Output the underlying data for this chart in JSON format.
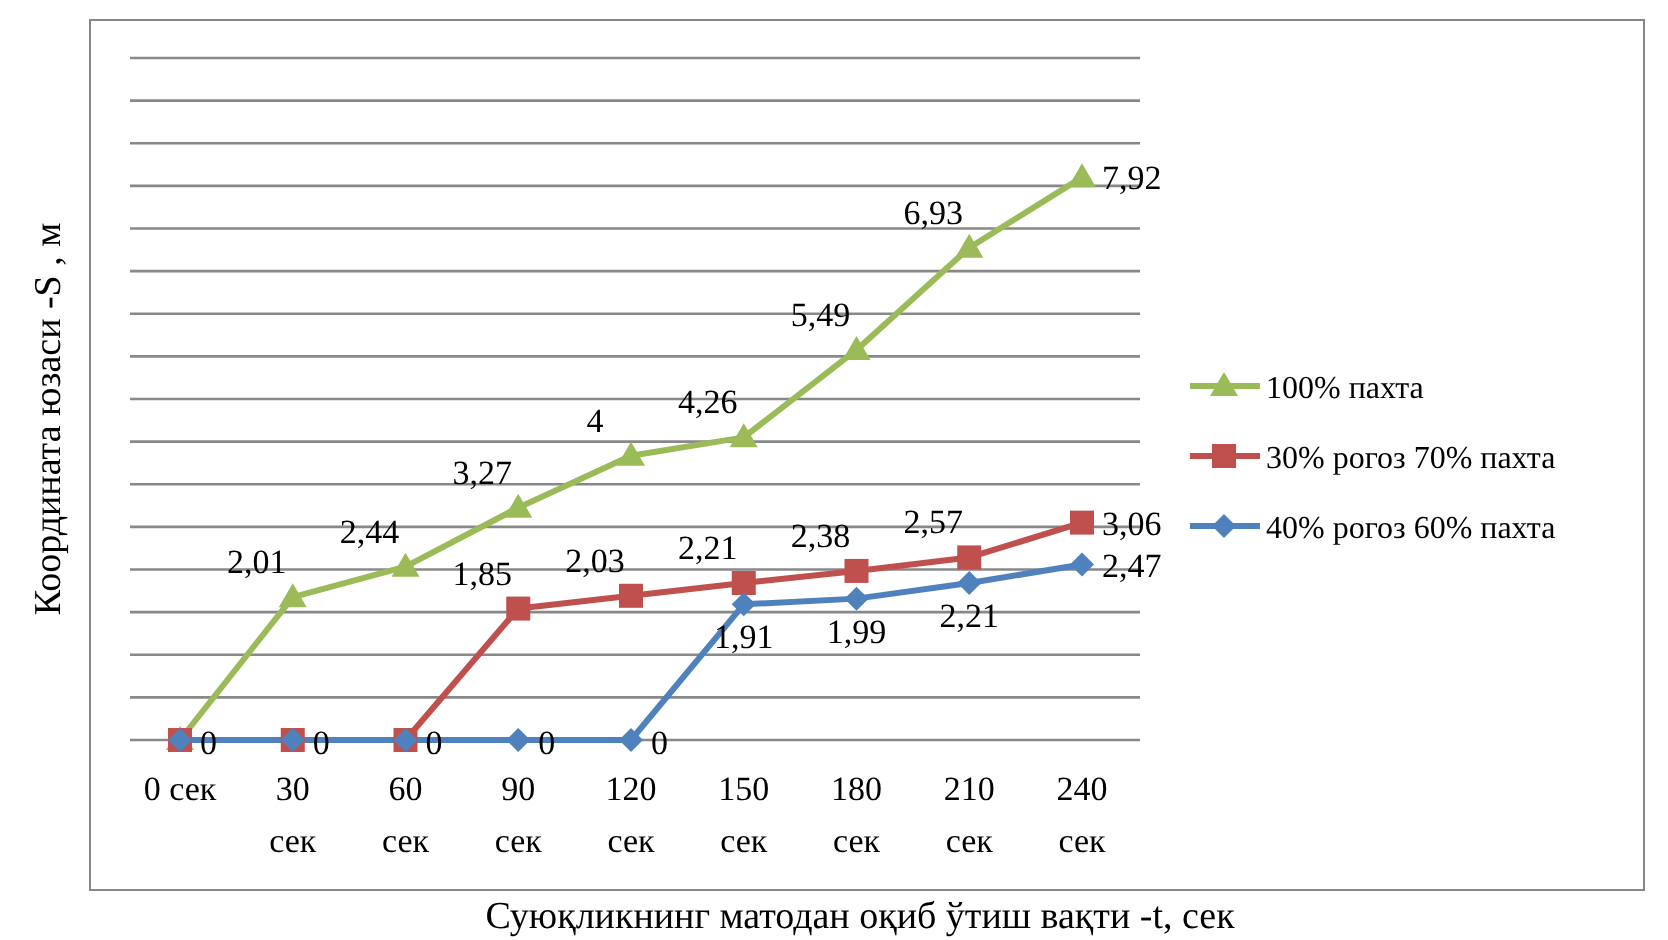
{
  "chart_data": {
    "type": "line",
    "xlabel": "Суюқликнинг матодан оқиб ўтиш вақти -t, сек",
    "ylabel": "Координата юзаси -S , м",
    "categories": [
      "0 сек",
      "30 сек",
      "60 сек",
      "90 сек",
      "120 сек",
      "150 сек",
      "180 сек",
      "210 сек",
      "240 сек"
    ],
    "series": [
      {
        "name": "100% пахта",
        "color": "#9bbb59",
        "marker": "triangle",
        "values": [
          0,
          2.01,
          2.44,
          3.27,
          4,
          4.26,
          5.49,
          6.93,
          7.92
        ],
        "value_labels": [
          null,
          "2,01",
          "2,44",
          "3,27",
          "4",
          "4,26",
          "5,49",
          "6,93",
          "7,92"
        ]
      },
      {
        "name": "30% рогоз 70% пахта",
        "color": "#c0504d",
        "marker": "square",
        "values": [
          0,
          0,
          0,
          1.85,
          2.03,
          2.21,
          2.38,
          2.57,
          3.06
        ],
        "value_labels": [
          "0",
          "0",
          "0",
          "1,85",
          "2,03",
          "2,21",
          "2,38",
          "2,57",
          "3,06"
        ]
      },
      {
        "name": "40% рогоз 60% пахта",
        "color": "#4f81bd",
        "marker": "diamond",
        "values": [
          0,
          0,
          0,
          0,
          0,
          1.91,
          1.99,
          2.21,
          2.47
        ],
        "value_labels": [
          null,
          null,
          null,
          "0",
          "0",
          "1,91",
          "1,99",
          "2,21",
          "2,47"
        ]
      }
    ],
    "ylim": [
      0,
      9.6
    ],
    "yticks": [
      {
        "value": 0,
        "label": null
      },
      {
        "value": 0.6,
        "label": null
      },
      {
        "value": 1.2,
        "label": null
      },
      {
        "value": 1.8,
        "label": null
      },
      {
        "value": 2.4,
        "label": null
      },
      {
        "value": 3,
        "label": null
      },
      {
        "value": 3.6,
        "label": null
      },
      {
        "value": 4.2,
        "label": null
      },
      {
        "value": 4.8,
        "label": null
      },
      {
        "value": 5.4,
        "label": null
      },
      {
        "value": 6,
        "label": null
      },
      {
        "value": 6.6,
        "label": null
      },
      {
        "value": 7.2,
        "label": null
      },
      {
        "value": 7.8,
        "label": null
      },
      {
        "value": 8.4,
        "label": null
      },
      {
        "value": 9,
        "label": null
      },
      {
        "value": 9.6,
        "label": null
      }
    ],
    "grid": "y",
    "legend": "right",
    "tick_labels": "x",
    "line_style": "solid"
  }
}
